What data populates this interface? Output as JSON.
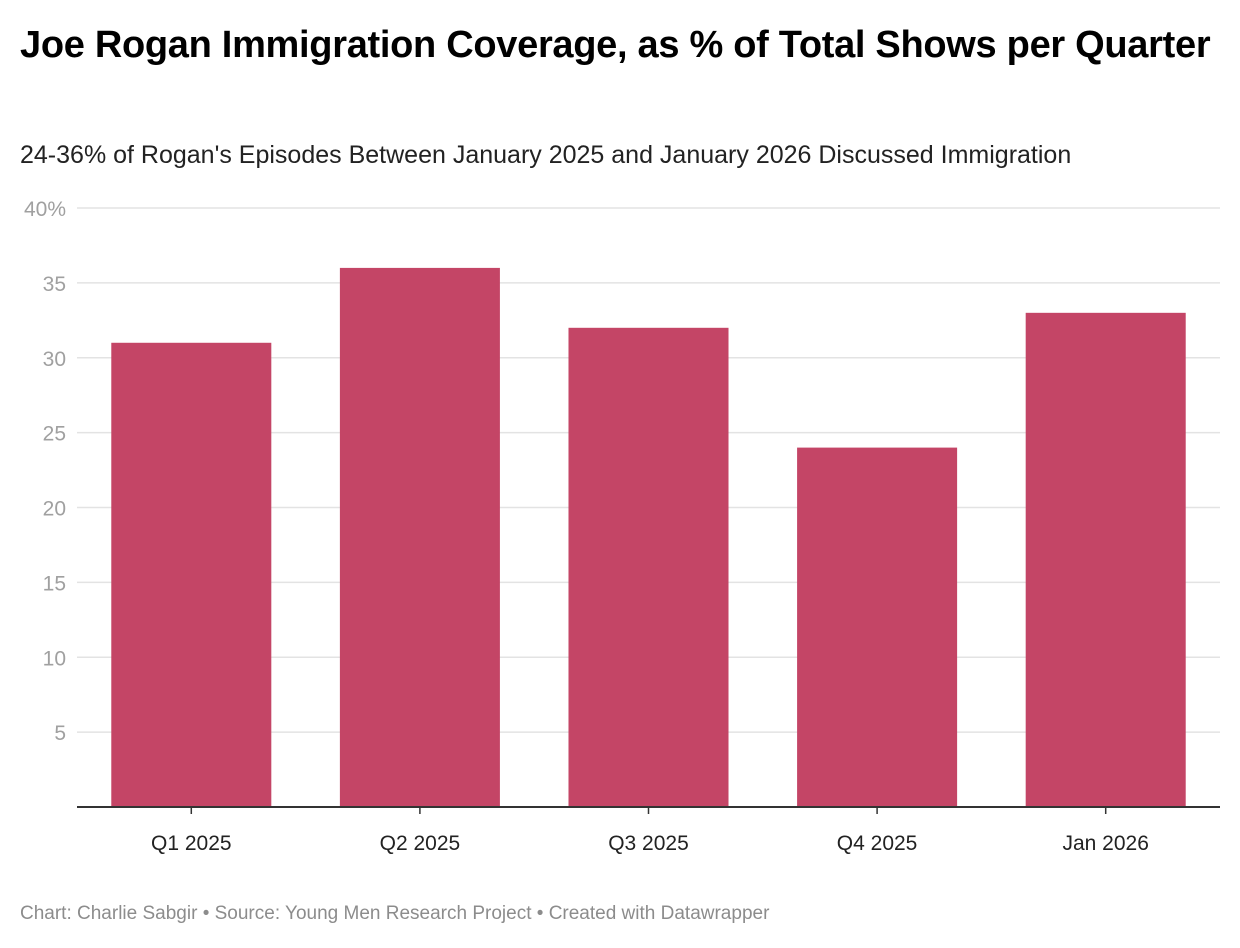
{
  "title": "Joe Rogan Immigration Coverage, as % of Total Shows per Quarter",
  "subtitle": "24-36% of Rogan's Episodes Between January 2025 and January 2026 Discussed Immigration",
  "footer": "Chart: Charlie Sabgir • Source: Young Men Research Project • Created with Datawrapper",
  "colors": {
    "bar": "#c44566",
    "grid": "#e3e3e3",
    "axis": "#333333"
  },
  "chart_data": {
    "type": "bar",
    "categories": [
      "Q1 2025",
      "Q2 2025",
      "Q3 2025",
      "Q4 2025",
      "Jan 2026"
    ],
    "values": [
      31,
      36,
      32,
      24,
      33
    ],
    "ylim": [
      0,
      40
    ],
    "yticks": [
      5,
      10,
      15,
      20,
      25,
      30,
      35,
      40
    ],
    "ytick_labels": [
      "5",
      "10",
      "15",
      "20",
      "25",
      "30",
      "35",
      "40%"
    ],
    "xlabel": "",
    "ylabel": "",
    "grid": true,
    "legend": "none"
  }
}
